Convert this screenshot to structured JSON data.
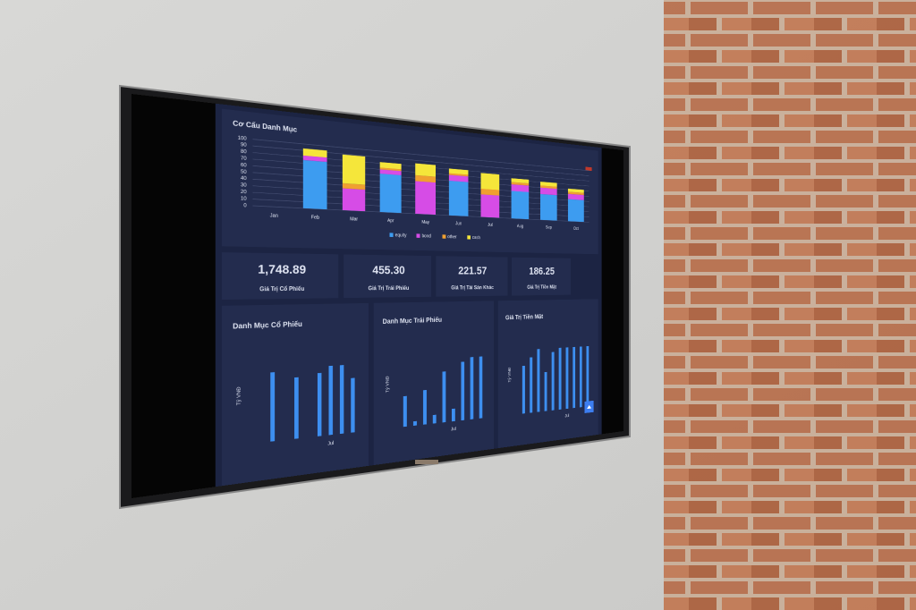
{
  "chart_data": [
    {
      "type": "stacked_bar",
      "title": "Cơ Cấu Danh Mục",
      "categories": [
        "Jan",
        "Feb",
        "Mar",
        "Apr",
        "May",
        "Jun",
        "Jul",
        "Aug",
        "Sep",
        "Oct"
      ],
      "series": [
        {
          "name": "equity",
          "color": "#3d9cf0",
          "values": [
            null,
            75,
            0,
            63,
            0,
            60,
            0,
            50,
            48,
            42
          ]
        },
        {
          "name": "bond",
          "color": "#d64ce6",
          "values": [
            null,
            7,
            35,
            7,
            55,
            10,
            40,
            12,
            12,
            10
          ]
        },
        {
          "name": "other",
          "color": "#f0a030",
          "values": [
            null,
            0,
            8,
            3,
            10,
            3,
            10,
            4,
            4,
            4
          ]
        },
        {
          "name": "cash",
          "color": "#f5e63a",
          "values": [
            null,
            11,
            46,
            9,
            20,
            8,
            28,
            7,
            7,
            6
          ]
        }
      ],
      "ylim": [
        0,
        100
      ],
      "yticks": [
        0,
        10,
        20,
        30,
        40,
        50,
        60,
        70,
        80,
        90,
        100
      ],
      "grid": true,
      "legend": "bottom"
    },
    {
      "type": "bar",
      "title": "Danh Mục Cổ Phiếu",
      "y_label": "Tỷ VNĐ",
      "categories": [
        null,
        null,
        null,
        null,
        null,
        null,
        "Jul",
        null,
        null
      ],
      "values": [
        0,
        72,
        0,
        65,
        0,
        68,
        75,
        75,
        60
      ],
      "color": "#3d8ff0",
      "ylim": [
        0,
        100
      ]
    },
    {
      "type": "bar",
      "title": "Danh Mục Trái Phiếu",
      "y_label": "Tỷ VNĐ",
      "categories": [
        null,
        null,
        null,
        null,
        null,
        "Jul",
        null,
        null,
        null
      ],
      "values": [
        35,
        5,
        40,
        10,
        60,
        15,
        70,
        75,
        75
      ],
      "color": "#3d8ff0",
      "ylim": [
        0,
        100
      ]
    },
    {
      "type": "bar",
      "title": "Giá Trị Tiền Mặt",
      "y_label": "Tỷ VNĐ",
      "categories": [
        null,
        null,
        null,
        null,
        null,
        null,
        "Jul",
        null,
        null,
        null
      ],
      "values": [
        60,
        70,
        80,
        50,
        75,
        80,
        80,
        80,
        80,
        80
      ],
      "color": "#3d8ff0",
      "ylim": [
        0,
        100
      ]
    }
  ],
  "kpis": [
    {
      "value": "1,748.89",
      "label": "Giá Trị Cổ Phiếu"
    },
    {
      "value": "455.30",
      "label": "Giá Trị Trái Phiếu"
    },
    {
      "value": "221.57",
      "label": "Giá Trị Tài Sản Khác"
    },
    {
      "value": "186.25",
      "label": "Giá Trị Tiền Mặt"
    }
  ]
}
